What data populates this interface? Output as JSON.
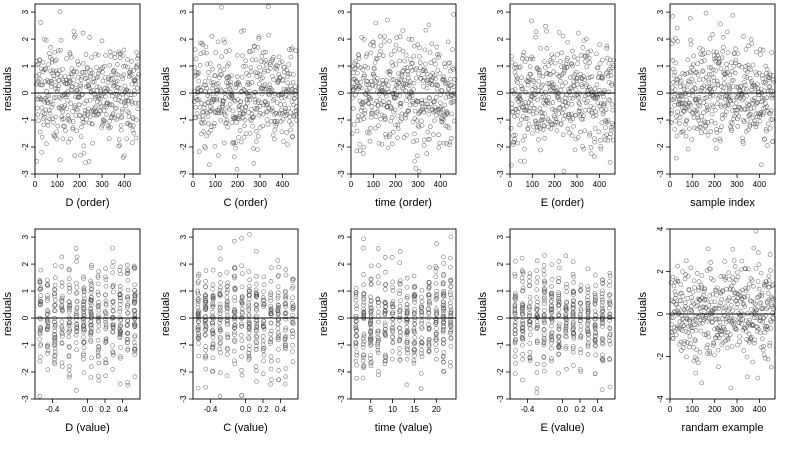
{
  "chart_data": [
    {
      "type": "scatter",
      "xlabel": "D (order)",
      "ylabel": "residuals",
      "x_kind": "index",
      "n": 460,
      "xlim": [
        0,
        470
      ],
      "ylim": [
        -3,
        3.3
      ],
      "x_ticks": [
        0,
        100,
        200,
        300,
        400
      ],
      "x_tick_labels": [
        "0",
        "100",
        "200",
        "300",
        "400"
      ],
      "y_ticks": [
        -3,
        -2,
        -1,
        0,
        1,
        2,
        3
      ],
      "y_tick_labels": [
        "-3",
        "-2",
        "-1",
        "0",
        "1",
        "2",
        "3"
      ],
      "zero_line": true
    },
    {
      "type": "scatter",
      "xlabel": "C (order)",
      "ylabel": "residuals",
      "x_kind": "index",
      "n": 460,
      "xlim": [
        0,
        470
      ],
      "ylim": [
        -3,
        3.3
      ],
      "x_ticks": [
        0,
        100,
        200,
        300,
        400
      ],
      "x_tick_labels": [
        "0",
        "100",
        "200",
        "300",
        "400"
      ],
      "y_ticks": [
        -3,
        -2,
        -1,
        0,
        1,
        2,
        3
      ],
      "y_tick_labels": [
        "-3",
        "-2",
        "-1",
        "0",
        "1",
        "2",
        "3"
      ],
      "zero_line": true
    },
    {
      "type": "scatter",
      "xlabel": "time (order)",
      "ylabel": "residuals",
      "x_kind": "index",
      "n": 460,
      "xlim": [
        0,
        470
      ],
      "ylim": [
        -3,
        3.3
      ],
      "x_ticks": [
        0,
        100,
        200,
        300,
        400
      ],
      "x_tick_labels": [
        "0",
        "100",
        "200",
        "300",
        "400"
      ],
      "y_ticks": [
        -3,
        -2,
        -1,
        0,
        1,
        2,
        3
      ],
      "y_tick_labels": [
        "-3",
        "-2",
        "-1",
        "0",
        "1",
        "2",
        "3"
      ],
      "zero_line": true
    },
    {
      "type": "scatter",
      "xlabel": "E (order)",
      "ylabel": "residuals",
      "x_kind": "index",
      "n": 460,
      "xlim": [
        0,
        470
      ],
      "ylim": [
        -3,
        3.3
      ],
      "x_ticks": [
        0,
        100,
        200,
        300,
        400
      ],
      "x_tick_labels": [
        "0",
        "100",
        "200",
        "300",
        "400"
      ],
      "y_ticks": [
        -3,
        -2,
        -1,
        0,
        1,
        2,
        3
      ],
      "y_tick_labels": [
        "-3",
        "-2",
        "-1",
        "0",
        "1",
        "2",
        "3"
      ],
      "zero_line": true
    },
    {
      "type": "scatter",
      "xlabel": "sample index",
      "ylabel": "residuals",
      "x_kind": "index",
      "n": 460,
      "xlim": [
        0,
        470
      ],
      "ylim": [
        -3,
        3.3
      ],
      "x_ticks": [
        0,
        100,
        200,
        300,
        400
      ],
      "x_tick_labels": [
        "0",
        "100",
        "200",
        "300",
        "400"
      ],
      "y_ticks": [
        -3,
        -2,
        -1,
        0,
        1,
        2,
        3
      ],
      "y_tick_labels": [
        "-3",
        "-2",
        "-1",
        "0",
        "1",
        "2",
        "3"
      ],
      "zero_line": true
    },
    {
      "type": "scatter",
      "xlabel": "D (value)",
      "ylabel": "residuals",
      "x_kind": "value",
      "n": 460,
      "xlim": [
        -0.6,
        0.6
      ],
      "ylim": [
        -3,
        3.3
      ],
      "x_ticks": [
        -0.4,
        0,
        0.2,
        0.4
      ],
      "x_tick_labels": [
        "-0.4",
        "0.0",
        "0.2",
        "0.4"
      ],
      "y_ticks": [
        -3,
        -2,
        -1,
        0,
        1,
        2,
        3
      ],
      "y_tick_labels": [
        "-3",
        "-2",
        "-1",
        "0",
        "1",
        "2",
        "3"
      ],
      "zero_line": true
    },
    {
      "type": "scatter",
      "xlabel": "C (value)",
      "ylabel": "residuals",
      "x_kind": "value",
      "n": 460,
      "xlim": [
        -0.6,
        0.6
      ],
      "ylim": [
        -3,
        3.3
      ],
      "x_ticks": [
        -0.4,
        0,
        0.2,
        0.4
      ],
      "x_tick_labels": [
        "-0.4",
        "0.0",
        "0.2",
        "0.4"
      ],
      "y_ticks": [
        -3,
        -2,
        -1,
        0,
        1,
        2,
        3
      ],
      "y_tick_labels": [
        "-3",
        "-2",
        "-1",
        "0",
        "1",
        "2",
        "3"
      ],
      "zero_line": true
    },
    {
      "type": "scatter",
      "xlabel": "time (value)",
      "ylabel": "residuals",
      "x_kind": "value",
      "n": 460,
      "xlim": [
        0.5,
        24.5
      ],
      "ylim": [
        -3,
        3.3
      ],
      "x_ticks": [
        5,
        10,
        15,
        20
      ],
      "x_tick_labels": [
        "5",
        "10",
        "15",
        "20"
      ],
      "y_ticks": [
        -3,
        -2,
        -1,
        0,
        1,
        2,
        3
      ],
      "y_tick_labels": [
        "-3",
        "-2",
        "-1",
        "0",
        "1",
        "2",
        "3"
      ],
      "zero_line": true
    },
    {
      "type": "scatter",
      "xlabel": "E (value)",
      "ylabel": "residuals",
      "x_kind": "value",
      "n": 460,
      "xlim": [
        -0.6,
        0.6
      ],
      "ylim": [
        -3,
        3.3
      ],
      "x_ticks": [
        -0.4,
        0,
        0.2,
        0.4
      ],
      "x_tick_labels": [
        "-0.4",
        "0.0",
        "0.2",
        "0.4"
      ],
      "y_ticks": [
        -3,
        -2,
        -1,
        0,
        1,
        2,
        3
      ],
      "y_tick_labels": [
        "-3",
        "-2",
        "-1",
        "0",
        "1",
        "2",
        "3"
      ],
      "zero_line": true
    },
    {
      "type": "scatter",
      "xlabel": "randam example",
      "ylabel": "residuals",
      "x_kind": "index",
      "n": 460,
      "xlim": [
        0,
        470
      ],
      "ylim": [
        -4,
        4
      ],
      "x_ticks": [
        0,
        100,
        200,
        300,
        400
      ],
      "x_tick_labels": [
        "0",
        "100",
        "200",
        "300",
        "400"
      ],
      "y_ticks": [
        -4,
        -2,
        0,
        2,
        4
      ],
      "y_tick_labels": [
        "-4",
        "-2",
        "0",
        "2",
        "4"
      ],
      "zero_line": true
    }
  ]
}
